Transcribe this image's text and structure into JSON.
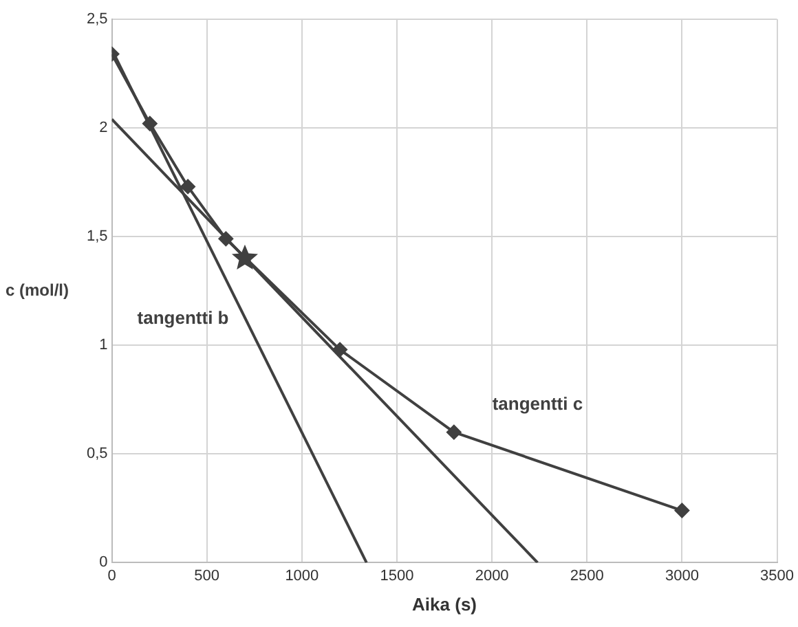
{
  "chart_data": {
    "type": "line",
    "xlabel": "Aika (s)",
    "ylabel": "c (mol/l)",
    "series": [
      {
        "color": "#404040",
        "marker": "diamond",
        "x": [
          0,
          200,
          400,
          600,
          1200,
          1800,
          3000
        ],
        "values": [
          2.34,
          2.02,
          1.73,
          1.49,
          0.98,
          0.6,
          0.24
        ]
      },
      {
        "color": "#404040",
        "marker": "none",
        "x": [
          0,
          1340
        ],
        "values": [
          2.36,
          0
        ]
      },
      {
        "color": "#404040",
        "marker": "none",
        "x": [
          0,
          2240
        ],
        "values": [
          2.04,
          0
        ]
      },
      {
        "type": "scatter",
        "color": "#404040",
        "marker": "star",
        "x": [
          700
        ],
        "values": [
          1.4
        ]
      }
    ],
    "xlim": [
      0,
      3500
    ],
    "xticks": [
      0,
      500,
      1000,
      1500,
      2000,
      2500,
      3000,
      3500
    ],
    "ylim": [
      0,
      2.5
    ],
    "yticks": [
      0,
      {
        "value": 0.5,
        "label": "0,5"
      },
      1,
      {
        "value": 1.5,
        "label": "1,5"
      },
      2,
      {
        "value": 2.5,
        "label": "2,5"
      }
    ],
    "grid": true,
    "legend": false,
    "annotations": [
      "tangentti b",
      "tangentti c"
    ]
  }
}
